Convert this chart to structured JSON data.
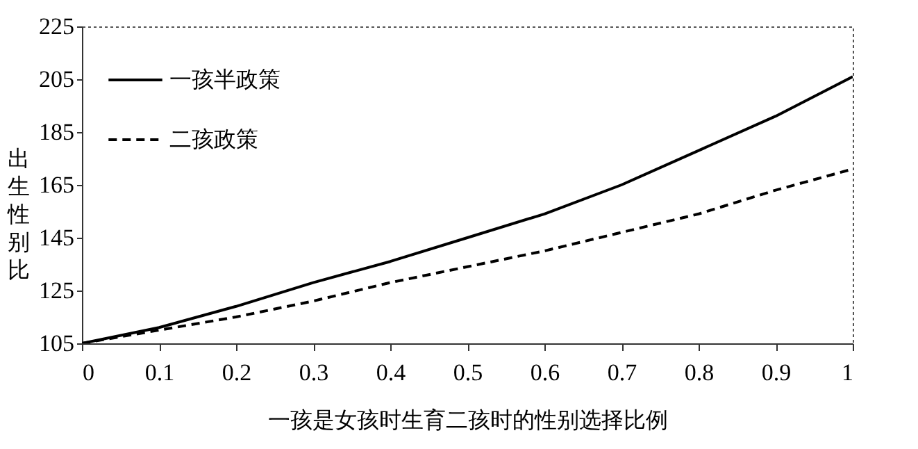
{
  "chart_data": {
    "type": "line",
    "xlabel": "一孩是女孩时生育二孩时的性别选择比例",
    "ylabel": "出生性别比",
    "x": [
      0,
      0.1,
      0.2,
      0.3,
      0.4,
      0.5,
      0.6,
      0.7,
      0.8,
      0.9,
      1
    ],
    "series": [
      {
        "name": "一孩半政策",
        "color": "#000000",
        "line_style": "solid",
        "values": [
          105,
          111,
          119,
          128,
          136,
          145,
          154,
          165,
          178,
          191,
          206
        ]
      },
      {
        "name": "二孩政策",
        "color": "#000000",
        "line_style": "dashed",
        "values": [
          105,
          110,
          115,
          121,
          128,
          134,
          140,
          147,
          154,
          163,
          171
        ]
      }
    ],
    "xlim": [
      0,
      1
    ],
    "xticks": [
      0,
      0.1,
      0.2,
      0.3,
      0.4,
      0.5,
      0.6,
      0.7,
      0.8,
      0.9,
      1
    ],
    "ylim": [
      105,
      225
    ],
    "yticks": [
      105,
      125,
      145,
      165,
      185,
      205,
      225
    ],
    "grid": false,
    "legend": "top left",
    "marker": "none"
  }
}
